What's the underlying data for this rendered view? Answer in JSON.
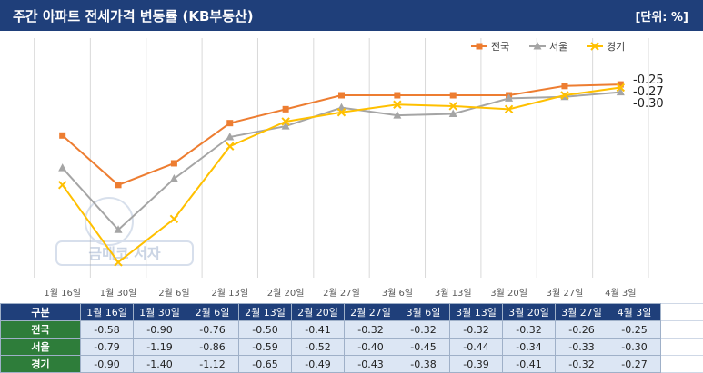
{
  "header": {
    "title": "주간 아파트 전세가격 변동률 (KB부동산)",
    "unit": "[단위: %]"
  },
  "colors": {
    "header_bg": "#1f3f7a",
    "national": "#ed7d31",
    "seoul": "#a5a5a5",
    "gyeonggi": "#ffc000",
    "row_label_bg": "#2e7d3a",
    "cell_bg": "#dce6f4"
  },
  "watermark": {
    "text": "금매코 서자"
  },
  "chart_data": {
    "type": "line",
    "categories": [
      "1월 16일",
      "1월 30일",
      "2월 6일",
      "2월 13일",
      "2월 20일",
      "2월 27일",
      "3월 6일",
      "3월 13일",
      "3월 20일",
      "3월 27일",
      "4월 3일"
    ],
    "series": [
      {
        "name": "전국",
        "color": "#ed7d31",
        "marker": "square",
        "values": [
          -0.58,
          -0.9,
          -0.76,
          -0.5,
          -0.41,
          -0.32,
          -0.32,
          -0.32,
          -0.32,
          -0.26,
          -0.25
        ]
      },
      {
        "name": "서울",
        "color": "#a5a5a5",
        "marker": "triangle",
        "values": [
          -0.79,
          -1.19,
          -0.86,
          -0.59,
          -0.52,
          -0.4,
          -0.45,
          -0.44,
          -0.34,
          -0.33,
          -0.3
        ]
      },
      {
        "name": "경기",
        "color": "#ffc000",
        "marker": "x",
        "values": [
          -0.9,
          -1.4,
          -1.12,
          -0.65,
          -0.49,
          -0.43,
          -0.38,
          -0.39,
          -0.41,
          -0.32,
          -0.27
        ]
      }
    ],
    "end_labels": [
      "-0.25",
      "-0.27",
      "-0.30"
    ],
    "ylim": [
      -1.5,
      0.05
    ],
    "legend_position": "top-right",
    "grid": "vertical"
  },
  "table": {
    "header_label": "구분",
    "columns": [
      "1월 16일",
      "1월 30일",
      "2월 6일",
      "2월 13일",
      "2월 20일",
      "2월 27일",
      "3월 6일",
      "3월 13일",
      "3월 20일",
      "3월 27일",
      "4월 3일"
    ],
    "rows": [
      {
        "label": "전국",
        "values": [
          "-0.58",
          "-0.90",
          "-0.76",
          "-0.50",
          "-0.41",
          "-0.32",
          "-0.32",
          "-0.32",
          "-0.32",
          "-0.26",
          "-0.25"
        ]
      },
      {
        "label": "서울",
        "values": [
          "-0.79",
          "-1.19",
          "-0.86",
          "-0.59",
          "-0.52",
          "-0.40",
          "-0.45",
          "-0.44",
          "-0.34",
          "-0.33",
          "-0.30"
        ]
      },
      {
        "label": "경기",
        "values": [
          "-0.90",
          "-1.40",
          "-1.12",
          "-0.65",
          "-0.49",
          "-0.43",
          "-0.38",
          "-0.39",
          "-0.41",
          "-0.32",
          "-0.27"
        ]
      }
    ]
  }
}
